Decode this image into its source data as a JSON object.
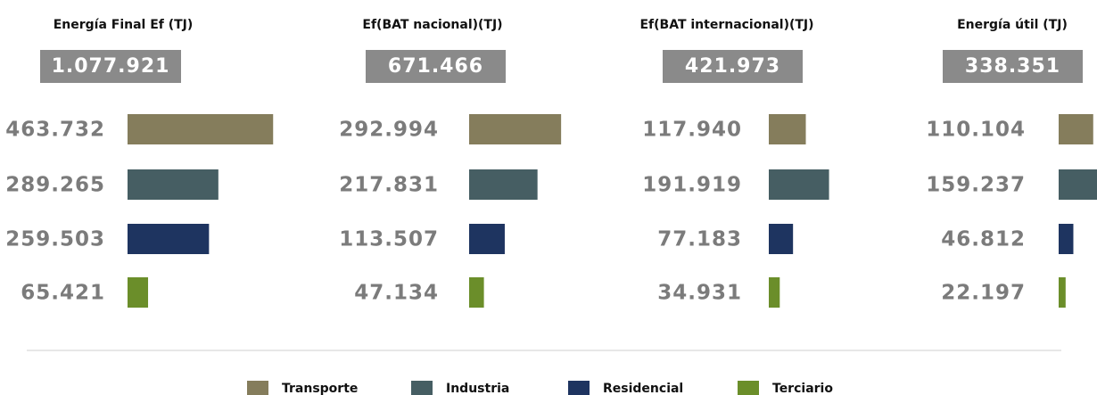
{
  "chart_data": [
    {
      "type": "bar",
      "title": "Energía Final Ef (TJ)",
      "total": "1.077.921",
      "values": [
        463732,
        289265,
        259503,
        65421
      ],
      "value_labels": [
        "463.732",
        "289.265",
        "259.503",
        "65.421"
      ],
      "xlim": [
        0,
        500000
      ]
    },
    {
      "type": "bar",
      "title": "Ef(BAT nacional)(TJ)",
      "total": "671.466",
      "values": [
        292994,
        217831,
        113507,
        47134
      ],
      "value_labels": [
        "292.994",
        "217.831",
        "113.507",
        "47.134"
      ],
      "xlim": [
        0,
        500000
      ]
    },
    {
      "type": "bar",
      "title": "Ef(BAT internacional)(TJ)",
      "total": "421.973",
      "values": [
        117940,
        191919,
        77183,
        34931
      ],
      "value_labels": [
        "117.940",
        "191.919",
        "77.183",
        "34.931"
      ],
      "xlim": [
        0,
        500000
      ]
    },
    {
      "type": "bar",
      "title": "Energía útil (TJ)",
      "total": "338.351",
      "values": [
        110104,
        159237,
        46812,
        22197
      ],
      "value_labels": [
        "110.104",
        "159.237",
        "46.812",
        "22.197"
      ],
      "xlim": [
        0,
        500000
      ]
    }
  ],
  "legend": {
    "names": [
      "Transporte",
      "Industria",
      "Residencial",
      "Terciario"
    ],
    "colors": [
      "#857d5c",
      "#465e63",
      "#1e3460",
      "#6b8e2a"
    ]
  }
}
